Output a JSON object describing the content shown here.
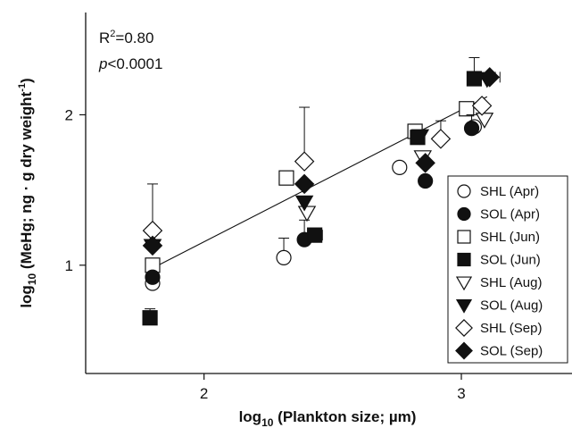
{
  "chart_data": {
    "type": "scatter",
    "xlabel": {
      "prefix": "log",
      "sub": "10",
      "rest": " (Plankton size; µm)"
    },
    "ylabel": {
      "prefix": "log",
      "sub": "10",
      "rest": " (MeHg; ng · g dry weight",
      "sup": "-1",
      "close": ")"
    },
    "xlim": [
      1.54,
      3.43
    ],
    "ylim": [
      0.28,
      2.68
    ],
    "x_ticks": [
      2,
      3
    ],
    "y_ticks": [
      1,
      2
    ],
    "annotations": {
      "r2": {
        "prefix": "R",
        "sup": "2",
        "rest": "=0.80"
      },
      "p": {
        "italic": "p",
        "rest": "<0.0001"
      }
    },
    "regression_line": {
      "x": [
        1.8,
        3.1
      ],
      "y": [
        0.98,
        2.12
      ]
    },
    "legend_position": "right",
    "series": [
      {
        "name": "SHL (Apr)",
        "marker": "circle",
        "fill": "open",
        "points": [
          {
            "x": 1.8,
            "y": 0.88
          },
          {
            "x": 2.31,
            "y": 1.05,
            "yerr": 0.13
          },
          {
            "x": 2.76,
            "y": 1.65
          },
          {
            "x": 3.05,
            "y": 1.92
          }
        ]
      },
      {
        "name": "SOL (Apr)",
        "marker": "circle",
        "fill": "filled",
        "points": [
          {
            "x": 1.8,
            "y": 0.92
          },
          {
            "x": 2.39,
            "y": 1.17,
            "yerr": 0.13
          },
          {
            "x": 2.86,
            "y": 1.56
          },
          {
            "x": 3.04,
            "y": 1.91,
            "yerr": 0.09
          }
        ]
      },
      {
        "name": "SHL (Jun)",
        "marker": "square",
        "fill": "open",
        "points": [
          {
            "x": 1.8,
            "y": 1.0
          },
          {
            "x": 2.32,
            "y": 1.58
          },
          {
            "x": 2.82,
            "y": 1.89
          },
          {
            "x": 3.02,
            "y": 2.04
          }
        ]
      },
      {
        "name": "SOL (Jun)",
        "marker": "square",
        "fill": "filled",
        "points": [
          {
            "x": 1.79,
            "y": 0.65,
            "yerr": 0.06
          },
          {
            "x": 2.43,
            "y": 1.2,
            "xerr": 0.03
          },
          {
            "x": 2.83,
            "y": 1.85
          },
          {
            "x": 3.05,
            "y": 2.24,
            "yerr": 0.14
          }
        ]
      },
      {
        "name": "SHL (Aug)",
        "marker": "triangle-down",
        "fill": "open",
        "points": [
          {
            "x": 1.8,
            "y": 1.13
          },
          {
            "x": 2.4,
            "y": 1.35
          },
          {
            "x": 2.85,
            "y": 1.72
          },
          {
            "x": 3.09,
            "y": 1.97
          }
        ]
      },
      {
        "name": "SOL (Aug)",
        "marker": "triangle-down",
        "fill": "filled",
        "points": [
          {
            "x": 1.8,
            "y": 1.13
          },
          {
            "x": 2.39,
            "y": 1.42
          },
          {
            "x": 2.84,
            "y": 1.86
          },
          {
            "x": 3.1,
            "y": 2.24
          }
        ]
      },
      {
        "name": "SHL (Sep)",
        "marker": "diamond",
        "fill": "open",
        "points": [
          {
            "x": 1.8,
            "y": 1.23,
            "yerr": 0.31
          },
          {
            "x": 2.39,
            "y": 1.69,
            "yerr": 0.36
          },
          {
            "x": 2.92,
            "y": 1.84,
            "yerr": 0.12
          },
          {
            "x": 3.08,
            "y": 2.06
          }
        ]
      },
      {
        "name": "SOL (Sep)",
        "marker": "diamond",
        "fill": "filled",
        "points": [
          {
            "x": 1.8,
            "y": 1.13
          },
          {
            "x": 2.39,
            "y": 1.54
          },
          {
            "x": 2.86,
            "y": 1.68
          },
          {
            "x": 3.11,
            "y": 2.25,
            "xerr": 0.04
          }
        ]
      }
    ]
  }
}
